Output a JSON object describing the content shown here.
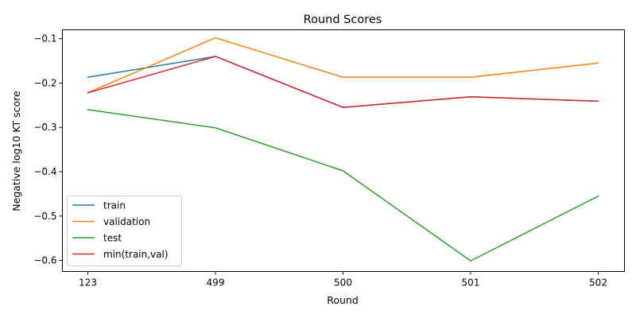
{
  "chart_data": {
    "type": "line",
    "title": "Round Scores",
    "xlabel": "Round",
    "ylabel": "Negative log10 KT score",
    "categories": [
      "123",
      "499",
      "500",
      "501",
      "502"
    ],
    "ylim": [
      -0.625,
      -0.08
    ],
    "yticks": [
      -0.1,
      -0.2,
      -0.3,
      -0.4,
      -0.5,
      -0.6
    ],
    "ytick_labels": [
      "−0.1",
      "−0.2",
      "−0.3",
      "−0.4",
      "−0.5",
      "−0.6"
    ],
    "legend_position": "lower-left",
    "grid": false,
    "series": [
      {
        "name": "train",
        "color": "#1f77b4",
        "values": [
          -0.187,
          -0.14,
          -0.255,
          -0.231,
          -0.241
        ]
      },
      {
        "name": "validation",
        "color": "#ff7f0e",
        "values": [
          -0.222,
          -0.098,
          -0.187,
          -0.187,
          -0.155
        ]
      },
      {
        "name": "test",
        "color": "#2ca02c",
        "values": [
          -0.26,
          -0.301,
          -0.398,
          -0.601,
          -0.455
        ]
      },
      {
        "name": "min(train,val)",
        "color": "#d62728",
        "values": [
          -0.222,
          -0.14,
          -0.255,
          -0.231,
          -0.241
        ]
      }
    ]
  }
}
